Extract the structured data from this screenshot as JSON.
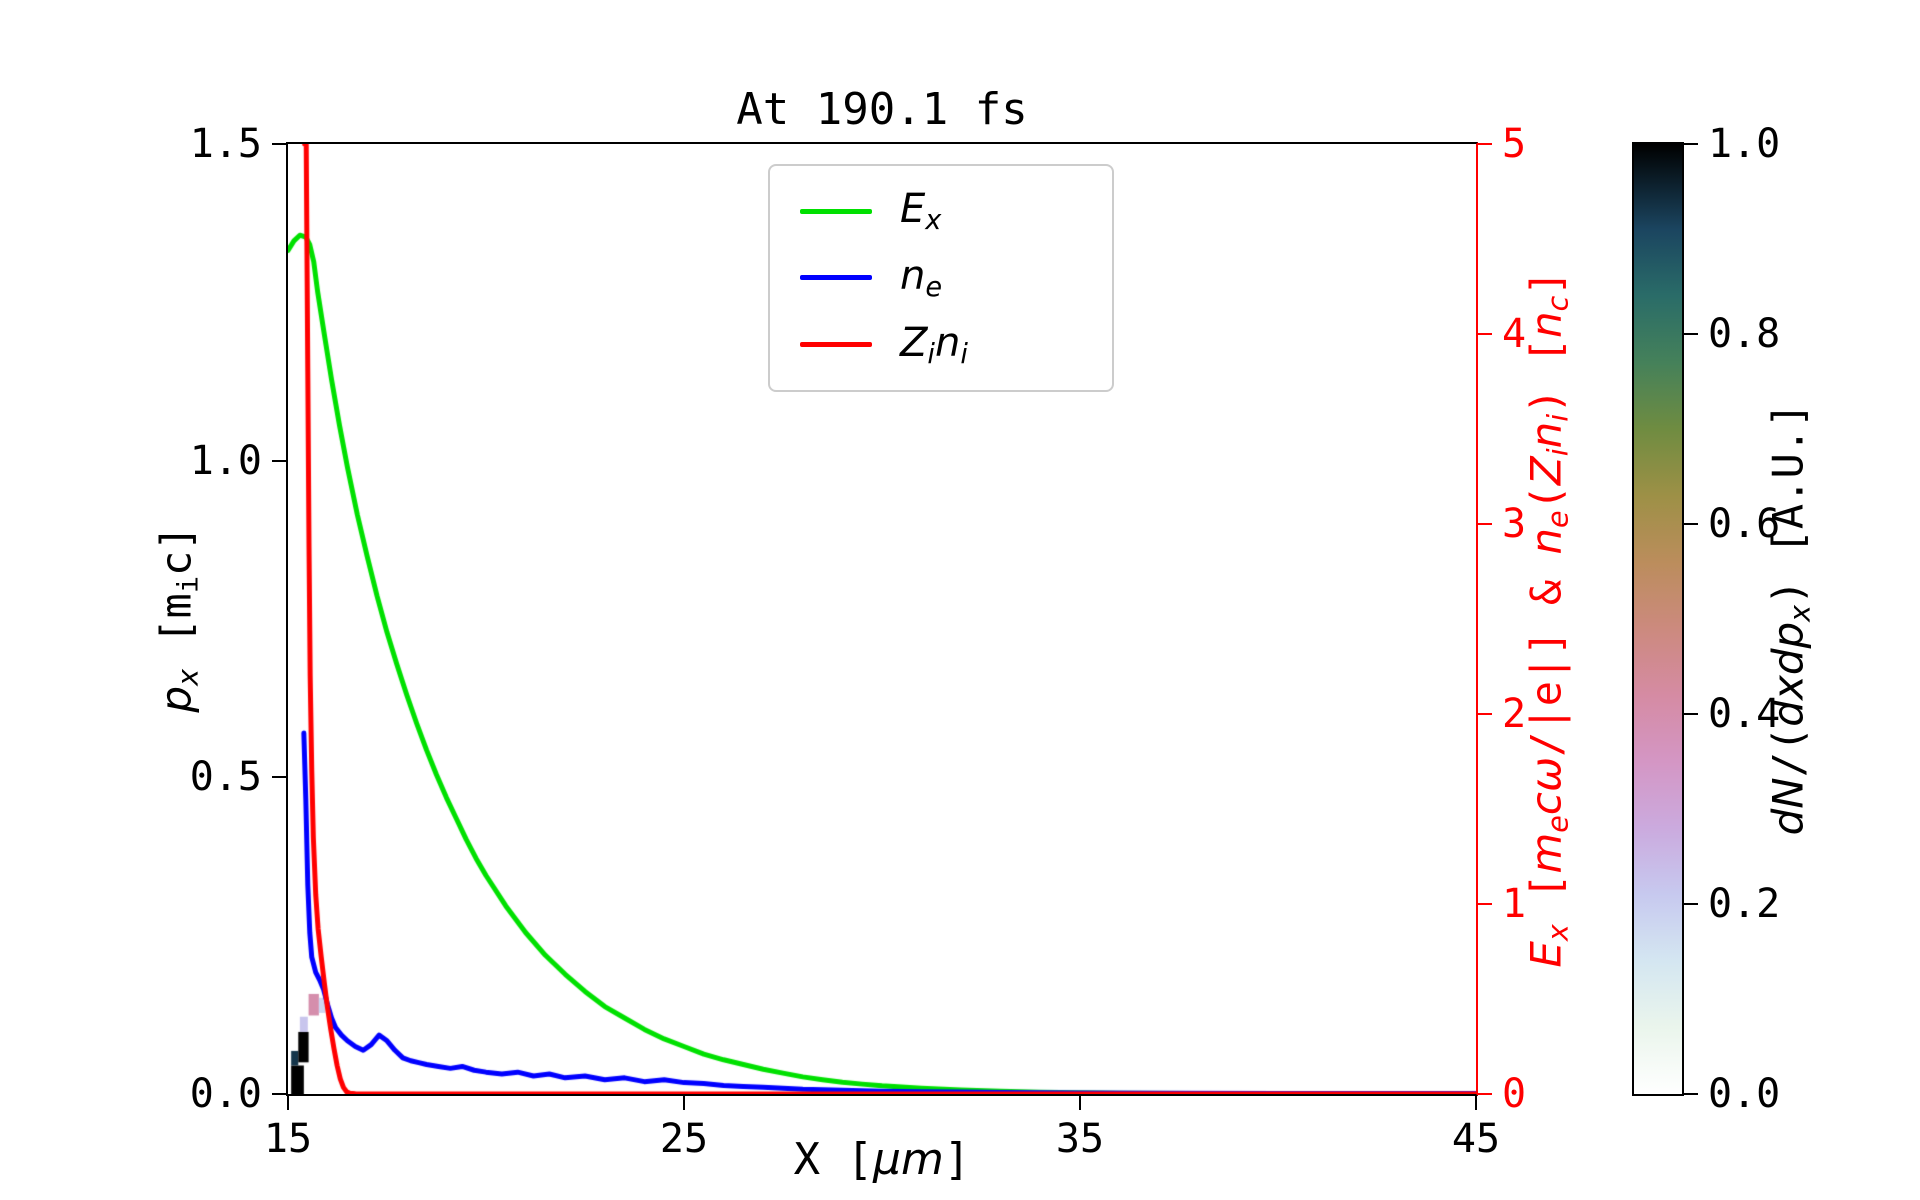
{
  "chart_data": {
    "type": "line",
    "overlay": "heatmap",
    "title": "At 190.1 fs",
    "xlabel": "X [μm]",
    "ylabel_left": "p_x [m_i c]",
    "ylabel_right": "E_x [m_e cω/|e|] & n_e(Z_i n_i) [n_c]",
    "x_range": [
      15,
      45
    ],
    "y_left_range": [
      0,
      1.5
    ],
    "y_right_range": [
      0,
      5
    ],
    "x_ticks": [
      "15",
      "25",
      "35",
      "45"
    ],
    "x_tick_values": [
      15,
      25,
      35,
      45
    ],
    "y_left_ticks": [
      "0.0",
      "0.5",
      "1.0",
      "1.5"
    ],
    "y_left_tick_values": [
      0,
      0.5,
      1.0,
      1.5
    ],
    "y_right_ticks": [
      "0",
      "1",
      "2",
      "3",
      "4",
      "5"
    ],
    "y_right_tick_values": [
      0,
      1,
      2,
      3,
      4,
      5
    ],
    "xlabel_rich": [
      {
        "t": "X ["
      },
      {
        "t": "μ",
        "i": true
      },
      {
        "t": "m",
        "i": true
      },
      {
        "t": "]"
      }
    ],
    "ylabel_left_rich": [
      {
        "t": "p",
        "i": true
      },
      {
        "t": "x",
        "i": true,
        "sub": true
      },
      {
        "t": " [m"
      },
      {
        "t": "i",
        "sub": true
      },
      {
        "t": "c]"
      }
    ],
    "ylabel_right_rich": [
      {
        "t": "E",
        "i": true
      },
      {
        "t": "x",
        "i": true,
        "sub": true
      },
      {
        "t": " ["
      },
      {
        "t": "m",
        "i": true
      },
      {
        "t": "e",
        "i": true,
        "sub": true
      },
      {
        "t": "c",
        "i": true
      },
      {
        "t": "ω",
        "i": true
      },
      {
        "t": "/|e|] & "
      },
      {
        "t": "n",
        "i": true
      },
      {
        "t": "e",
        "i": true,
        "sub": true
      },
      {
        "t": "("
      },
      {
        "t": "Z",
        "i": true
      },
      {
        "t": "i",
        "i": true,
        "sub": true
      },
      {
        "t": "n",
        "i": true
      },
      {
        "t": "i",
        "i": true,
        "sub": true
      },
      {
        "t": ") ["
      },
      {
        "t": "n",
        "i": true
      },
      {
        "t": "c",
        "i": true,
        "sub": true
      },
      {
        "t": "]"
      }
    ],
    "series": [
      {
        "name": "E_x",
        "axis": "right",
        "color": "#00e000",
        "points": [
          [
            15.0,
            4.44
          ],
          [
            15.15,
            4.49
          ],
          [
            15.3,
            4.52
          ],
          [
            15.45,
            4.51
          ],
          [
            15.55,
            4.47
          ],
          [
            15.65,
            4.38
          ],
          [
            15.75,
            4.22
          ],
          [
            15.9,
            4.02
          ],
          [
            16.1,
            3.76
          ],
          [
            16.3,
            3.52
          ],
          [
            16.5,
            3.3
          ],
          [
            16.75,
            3.05
          ],
          [
            17.0,
            2.83
          ],
          [
            17.25,
            2.62
          ],
          [
            17.5,
            2.43
          ],
          [
            17.75,
            2.26
          ],
          [
            18.0,
            2.1
          ],
          [
            18.25,
            1.95
          ],
          [
            18.5,
            1.81
          ],
          [
            18.75,
            1.68
          ],
          [
            19.0,
            1.56
          ],
          [
            19.25,
            1.45
          ],
          [
            19.5,
            1.34
          ],
          [
            19.75,
            1.24
          ],
          [
            20.0,
            1.15
          ],
          [
            20.5,
            0.99
          ],
          [
            21.0,
            0.85
          ],
          [
            21.5,
            0.73
          ],
          [
            22.0,
            0.63
          ],
          [
            22.5,
            0.54
          ],
          [
            23.0,
            0.46
          ],
          [
            23.5,
            0.4
          ],
          [
            24.0,
            0.34
          ],
          [
            24.5,
            0.29
          ],
          [
            25.0,
            0.25
          ],
          [
            25.5,
            0.21
          ],
          [
            26.0,
            0.18
          ],
          [
            26.5,
            0.155
          ],
          [
            27.0,
            0.13
          ],
          [
            27.5,
            0.11
          ],
          [
            28.0,
            0.09
          ],
          [
            28.5,
            0.075
          ],
          [
            29.0,
            0.062
          ],
          [
            29.5,
            0.052
          ],
          [
            30.0,
            0.043
          ],
          [
            31.0,
            0.03
          ],
          [
            32.0,
            0.021
          ],
          [
            33.0,
            0.014
          ],
          [
            34.0,
            0.009
          ],
          [
            35.0,
            0.006
          ],
          [
            36.0,
            0.004
          ],
          [
            38.0,
            0.002
          ],
          [
            40.0,
            0.001
          ],
          [
            45.0,
            0.0
          ]
        ]
      },
      {
        "name": "n_e",
        "axis": "right",
        "color": "#0000ff",
        "points": [
          [
            15.4,
            1.9
          ],
          [
            15.45,
            1.55
          ],
          [
            15.5,
            1.1
          ],
          [
            15.55,
            0.85
          ],
          [
            15.6,
            0.72
          ],
          [
            15.7,
            0.64
          ],
          [
            15.8,
            0.6
          ],
          [
            15.9,
            0.55
          ],
          [
            16.0,
            0.47
          ],
          [
            16.1,
            0.4
          ],
          [
            16.2,
            0.35
          ],
          [
            16.35,
            0.31
          ],
          [
            16.5,
            0.28
          ],
          [
            16.7,
            0.25
          ],
          [
            16.9,
            0.23
          ],
          [
            17.1,
            0.26
          ],
          [
            17.3,
            0.31
          ],
          [
            17.5,
            0.28
          ],
          [
            17.7,
            0.23
          ],
          [
            17.9,
            0.19
          ],
          [
            18.1,
            0.175
          ],
          [
            18.3,
            0.165
          ],
          [
            18.5,
            0.155
          ],
          [
            18.8,
            0.145
          ],
          [
            19.1,
            0.135
          ],
          [
            19.4,
            0.145
          ],
          [
            19.7,
            0.125
          ],
          [
            20.0,
            0.115
          ],
          [
            20.4,
            0.105
          ],
          [
            20.8,
            0.115
          ],
          [
            21.2,
            0.095
          ],
          [
            21.6,
            0.105
          ],
          [
            22.0,
            0.085
          ],
          [
            22.5,
            0.095
          ],
          [
            23.0,
            0.075
          ],
          [
            23.5,
            0.085
          ],
          [
            24.0,
            0.065
          ],
          [
            24.5,
            0.075
          ],
          [
            25.0,
            0.06
          ],
          [
            25.5,
            0.055
          ],
          [
            26.0,
            0.045
          ],
          [
            26.5,
            0.04
          ],
          [
            27.0,
            0.035
          ],
          [
            27.5,
            0.03
          ],
          [
            28.0,
            0.025
          ],
          [
            29.0,
            0.02
          ],
          [
            30.0,
            0.015
          ],
          [
            31.0,
            0.012
          ],
          [
            32.0,
            0.01
          ],
          [
            33.0,
            0.008
          ],
          [
            34.0,
            0.006
          ],
          [
            35.0,
            0.005
          ],
          [
            37.0,
            0.004
          ],
          [
            40.0,
            0.003
          ],
          [
            42.0,
            0.002
          ],
          [
            45.0,
            0.002
          ]
        ]
      },
      {
        "name": "Z_i n_i",
        "axis": "right",
        "color": "#ff0000",
        "points": [
          [
            15.42,
            5.0
          ],
          [
            15.46,
            5.0
          ],
          [
            15.5,
            3.8
          ],
          [
            15.53,
            2.9
          ],
          [
            15.56,
            2.2
          ],
          [
            15.6,
            1.7
          ],
          [
            15.64,
            1.35
          ],
          [
            15.7,
            1.05
          ],
          [
            15.76,
            0.87
          ],
          [
            15.84,
            0.72
          ],
          [
            15.92,
            0.58
          ],
          [
            16.0,
            0.45
          ],
          [
            16.08,
            0.34
          ],
          [
            16.16,
            0.24
          ],
          [
            16.24,
            0.15
          ],
          [
            16.32,
            0.08
          ],
          [
            16.4,
            0.035
          ],
          [
            16.48,
            0.012
          ],
          [
            16.56,
            0.004
          ],
          [
            16.7,
            0.001
          ],
          [
            17.0,
            0.0
          ],
          [
            45.0,
            0.0
          ]
        ]
      }
    ],
    "heatmap": {
      "quantity": "dN/(dxdp_x)",
      "units": "A.U.",
      "cells": [
        {
          "x0": 15.08,
          "x1": 15.4,
          "p0": 0.0,
          "p1": 0.045,
          "v": 1.0
        },
        {
          "x0": 15.08,
          "x1": 15.26,
          "p0": 0.045,
          "p1": 0.068,
          "v": 0.93
        },
        {
          "x0": 15.26,
          "x1": 15.52,
          "p0": 0.05,
          "p1": 0.098,
          "v": 1.0
        },
        {
          "x0": 15.3,
          "x1": 15.5,
          "p0": 0.098,
          "p1": 0.122,
          "v": 0.22
        },
        {
          "x0": 15.52,
          "x1": 15.78,
          "p0": 0.124,
          "p1": 0.158,
          "v": 0.4
        },
        {
          "x0": 15.78,
          "x1": 15.94,
          "p0": 0.128,
          "p1": 0.152,
          "v": 0.18
        }
      ]
    }
  },
  "legend": {
    "items": [
      {
        "name": "E_x",
        "color": "#00e000",
        "label_rich": [
          {
            "t": "E",
            "i": true
          },
          {
            "t": "x",
            "i": true,
            "sub": true
          }
        ]
      },
      {
        "name": "n_e",
        "color": "#0000ff",
        "label_rich": [
          {
            "t": "n",
            "i": true
          },
          {
            "t": "e",
            "i": true,
            "sub": true
          }
        ]
      },
      {
        "name": "Z_i n_i",
        "color": "#ff0000",
        "label_rich": [
          {
            "t": "Z",
            "i": true
          },
          {
            "t": "i",
            "i": true,
            "sub": true
          },
          {
            "t": "n",
            "i": true
          },
          {
            "t": "i",
            "i": true,
            "sub": true
          }
        ]
      }
    ]
  },
  "colorbar": {
    "label": "dN/(dxdp_x) [A.U.]",
    "label_rich": [
      {
        "t": "d",
        "i": true
      },
      {
        "t": "N",
        "i": true
      },
      {
        "t": "/("
      },
      {
        "t": "d",
        "i": true
      },
      {
        "t": "x",
        "i": true
      },
      {
        "t": "d",
        "i": true
      },
      {
        "t": "p",
        "i": true
      },
      {
        "t": "x",
        "i": true,
        "sub": true
      },
      {
        "t": ") [A.U.]"
      }
    ],
    "range": [
      0,
      1
    ],
    "ticks": [
      "0.0",
      "0.2",
      "0.4",
      "0.6",
      "0.8",
      "1.0"
    ],
    "tick_values": [
      0,
      0.2,
      0.4,
      0.6,
      0.8,
      1.0
    ],
    "stops": [
      {
        "v": 0.0,
        "c": "#ffffff"
      },
      {
        "v": 0.07,
        "c": "#eaf5ec"
      },
      {
        "v": 0.14,
        "c": "#d4e6f1"
      },
      {
        "v": 0.21,
        "c": "#c7c9ef"
      },
      {
        "v": 0.28,
        "c": "#cbaade"
      },
      {
        "v": 0.35,
        "c": "#d496c4"
      },
      {
        "v": 0.42,
        "c": "#d58ba3"
      },
      {
        "v": 0.49,
        "c": "#cc8a7e"
      },
      {
        "v": 0.56,
        "c": "#bb8d5c"
      },
      {
        "v": 0.63,
        "c": "#9d9046"
      },
      {
        "v": 0.7,
        "c": "#6f8c41"
      },
      {
        "v": 0.77,
        "c": "#45815a"
      },
      {
        "v": 0.84,
        "c": "#2a6c68"
      },
      {
        "v": 0.91,
        "c": "#1b4560"
      },
      {
        "v": 1.0,
        "c": "#000000"
      }
    ]
  },
  "colors": {
    "right_axis": "#ff0000",
    "spine": "#000000"
  }
}
